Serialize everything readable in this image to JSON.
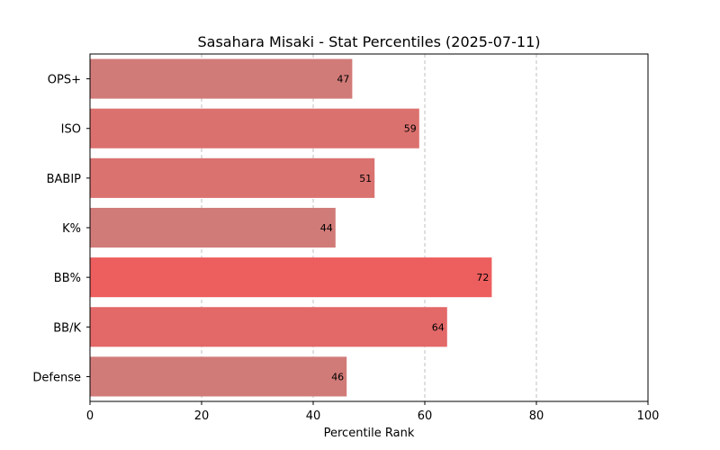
{
  "chart_data": {
    "type": "bar",
    "orientation": "horizontal",
    "title": "Sasahara Misaki - Stat Percentiles (2025-07-11)",
    "xlabel": "Percentile Rank",
    "ylabel": "",
    "xlim": [
      0,
      100
    ],
    "xticks": [
      0,
      20,
      40,
      60,
      80,
      100
    ],
    "grid": "x-axis dashed",
    "categories": [
      "OPS+",
      "ISO",
      "BABIP",
      "K%",
      "BB%",
      "BB/K",
      "Defense"
    ],
    "values": [
      47,
      59,
      51,
      44,
      72,
      64,
      46
    ],
    "colors": [
      "#d17b78",
      "#db716e",
      "#da7270",
      "#d17b78",
      "#ed5e5e",
      "#e36868",
      "#d17b78"
    ]
  }
}
